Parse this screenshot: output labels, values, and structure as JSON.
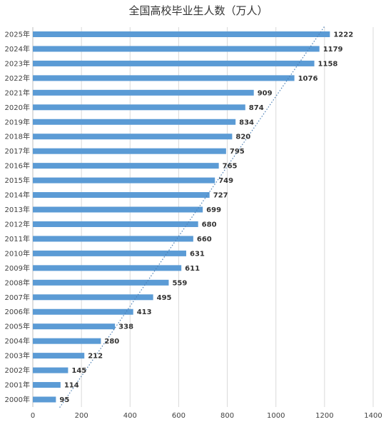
{
  "chart_data": {
    "type": "bar",
    "orientation": "horizontal",
    "title": "全国高校毕业生人数（万人）",
    "categories": [
      "2000年",
      "2001年",
      "2002年",
      "2003年",
      "2004年",
      "2005年",
      "2006年",
      "2007年",
      "2008年",
      "2009年",
      "2010年",
      "2011年",
      "2012年",
      "2013年",
      "2014年",
      "2015年",
      "2016年",
      "2017年",
      "2018年",
      "2019年",
      "2020年",
      "2021年",
      "2022年",
      "2023年",
      "2024年",
      "2025年"
    ],
    "values": [
      95,
      114,
      145,
      212,
      280,
      338,
      413,
      495,
      559,
      611,
      631,
      660,
      680,
      699,
      727,
      749,
      765,
      795,
      820,
      834,
      874,
      909,
      1076,
      1158,
      1179,
      1222
    ],
    "xlim": [
      0,
      1400
    ],
    "xticks": [
      0,
      200,
      400,
      600,
      800,
      1000,
      1200,
      1400
    ],
    "grid": true,
    "trendline": "linear",
    "colors": {
      "bar": "#5b9bd5",
      "trendline": "#4a7fb5"
    }
  }
}
